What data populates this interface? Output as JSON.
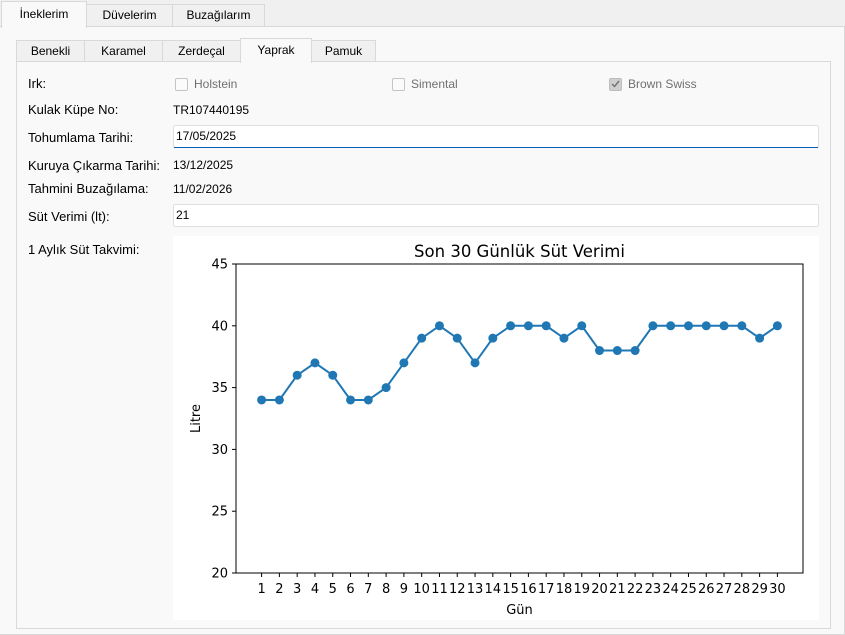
{
  "top_tabs": [
    {
      "label": "İneklerim",
      "active": true
    },
    {
      "label": "Düvelerim",
      "active": false
    },
    {
      "label": "Buzağılarım",
      "active": false
    }
  ],
  "sub_tabs": [
    {
      "label": "Benekli",
      "active": false
    },
    {
      "label": "Karamel",
      "active": false
    },
    {
      "label": "Zerdeçal",
      "active": false
    },
    {
      "label": "Yaprak",
      "active": true
    },
    {
      "label": "Pamuk",
      "active": false
    }
  ],
  "form": {
    "irk_label": "Irk:",
    "breeds": [
      {
        "label": "Holstein",
        "checked": false
      },
      {
        "label": "Simental",
        "checked": false
      },
      {
        "label": "Brown Swiss",
        "checked": true
      }
    ],
    "kulak_label": "Kulak Küpe No:",
    "kulak_value": "TR107440195",
    "tohumlama_label": "Tohumlama Tarihi:",
    "tohumlama_value": "17/05/2025",
    "kuruya_label": "Kuruya Çıkarma Tarihi:",
    "kuruya_value": "13/12/2025",
    "tahmini_label": "Tahmini Buzağılama:",
    "tahmini_value": "11/02/2026",
    "sut_label": "Süt Verimi (lt):",
    "sut_value": "21",
    "takvim_label": "1 Aylık Süt Takvimi:"
  },
  "chart_data": {
    "type": "line",
    "title": "Son 30 Günlük Süt Verimi",
    "xlabel": "Gün",
    "ylabel": "Litre",
    "x": [
      1,
      2,
      3,
      4,
      5,
      6,
      7,
      8,
      9,
      10,
      11,
      12,
      13,
      14,
      15,
      16,
      17,
      18,
      19,
      20,
      21,
      22,
      23,
      24,
      25,
      26,
      27,
      28,
      29,
      30
    ],
    "values": [
      34,
      34,
      36,
      37,
      36,
      34,
      34,
      35,
      37,
      39,
      40,
      39,
      37,
      39,
      40,
      40,
      40,
      39,
      40,
      38,
      38,
      38,
      40,
      40,
      40,
      40,
      40,
      40,
      39,
      40
    ],
    "yticks": [
      20,
      25,
      30,
      35,
      40,
      45
    ],
    "ylim": [
      20,
      45
    ],
    "grid": false,
    "color": "#1f77b4"
  }
}
